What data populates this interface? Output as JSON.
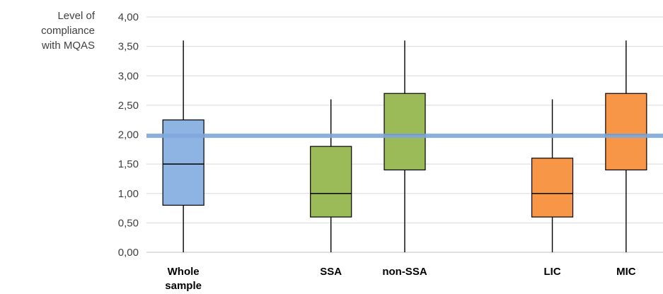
{
  "chart_data": {
    "type": "box",
    "ylabel_lines": [
      "Level of",
      "compliance",
      "with MQAS"
    ],
    "ylim": [
      0,
      4
    ],
    "ytick_step": 0.5,
    "ytick_labels": [
      "0,00",
      "0,50",
      "1,00",
      "1,50",
      "2,00",
      "2,50",
      "3,00",
      "3,50",
      "4,00"
    ],
    "grid": true,
    "reference_line": {
      "value": 1.98,
      "color": "#7fa7d9"
    },
    "boxes": [
      {
        "category_lines": [
          "Whole",
          "sample"
        ],
        "slot": 0.5,
        "min": 0.0,
        "q1": 0.8,
        "median": 1.5,
        "q3": 2.25,
        "max": 3.6,
        "color": "#8eb4e3"
      },
      {
        "category_lines": [
          "SSA"
        ],
        "slot": 2.5,
        "min": 0.0,
        "q1": 0.6,
        "median": 1.0,
        "q3": 1.8,
        "max": 2.6,
        "color": "#9bbb59"
      },
      {
        "category_lines": [
          "non-SSA"
        ],
        "slot": 3.5,
        "min": 0.0,
        "q1": 1.4,
        "median": 2.0,
        "q3": 2.7,
        "max": 3.6,
        "color": "#9bbb59"
      },
      {
        "category_lines": [
          "LIC"
        ],
        "slot": 5.5,
        "min": 0.0,
        "q1": 0.6,
        "median": 1.0,
        "q3": 1.6,
        "max": 2.6,
        "color": "#f79646"
      },
      {
        "category_lines": [
          "MIC"
        ],
        "slot": 6.5,
        "min": 0.0,
        "q1": 1.4,
        "median": 2.0,
        "q3": 2.7,
        "max": 3.6,
        "color": "#f79646"
      }
    ]
  }
}
